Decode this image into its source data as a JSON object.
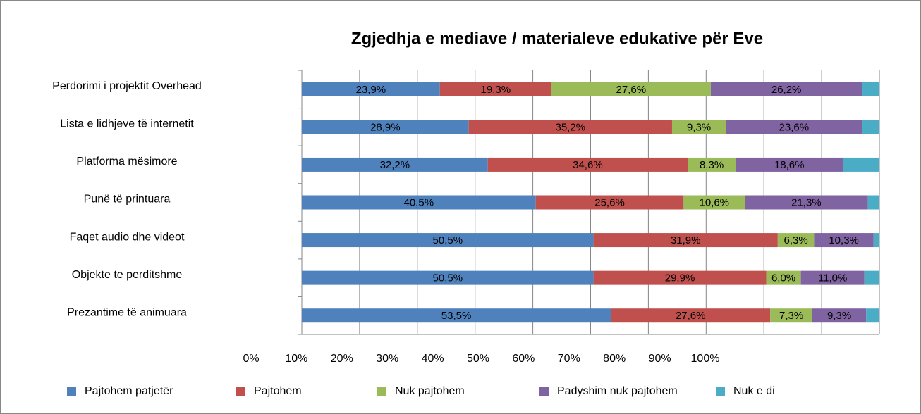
{
  "chart_data": {
    "type": "stacked_bar_horizontal",
    "title": "Zgjedhja e mediave / materialeve edukative për Eve",
    "categories": [
      "Perdorimi i projektit Overhead",
      "Lista e lidhjeve të internetit",
      "Platforma mësimore",
      "Punë të printuara",
      "Faqet audio dhe videot",
      "Objekte te perditshme",
      "Prezantime të animuara"
    ],
    "series": [
      {
        "name": "Pajtohem patjetër",
        "color": "#4f81bd",
        "values": [
          23.9,
          28.9,
          32.2,
          40.5,
          50.5,
          50.5,
          53.5
        ],
        "value_labels": [
          "23,9%",
          "28,9%",
          "32,2%",
          "40,5%",
          "50,5%",
          "50,5%",
          "53,5%"
        ]
      },
      {
        "name": "Pajtohem",
        "color": "#c0504d",
        "values": [
          19.3,
          35.2,
          34.6,
          25.6,
          31.9,
          29.9,
          27.6
        ],
        "value_labels": [
          "19,3%",
          "35,2%",
          "34,6%",
          "25,6%",
          "31,9%",
          "29,9%",
          "27,6%"
        ]
      },
      {
        "name": "Nuk pajtohem",
        "color": "#9bbb59",
        "values": [
          27.6,
          9.3,
          8.3,
          10.6,
          6.3,
          6.0,
          7.3
        ],
        "value_labels": [
          "27,6%",
          "9,3%",
          "8,3%",
          "10,6%",
          "6,3%",
          "6,0%",
          "7,3%"
        ]
      },
      {
        "name": "Padyshim nuk pajtohem",
        "color": "#8064a2",
        "values": [
          26.2,
          23.6,
          18.6,
          21.3,
          10.3,
          11.0,
          9.3
        ],
        "value_labels": [
          "26,2%",
          "23,6%",
          "18,6%",
          "21,3%",
          "10,3%",
          "11,0%",
          "9,3%"
        ]
      },
      {
        "name": "Nuk e di",
        "color": "#4bacc6",
        "values": [
          3.0,
          3.0,
          6.3,
          2.0,
          1.0,
          2.6,
          2.3
        ]
      }
    ],
    "xlim": [
      0,
      100
    ],
    "xticks": [
      {
        "value": 0,
        "label": "0%"
      },
      {
        "value": 10,
        "label": "10%"
      },
      {
        "value": 20,
        "label": "20%"
      },
      {
        "value": 30,
        "label": "30%"
      },
      {
        "value": 40,
        "label": "40%"
      },
      {
        "value": 50,
        "label": "50%"
      },
      {
        "value": 60,
        "label": "60%"
      },
      {
        "value": 70,
        "label": "70%"
      },
      {
        "value": 80,
        "label": "80%"
      },
      {
        "value": 90,
        "label": "90%"
      },
      {
        "value": 100,
        "label": "100%"
      }
    ],
    "grid": true,
    "legend": "bottom"
  }
}
